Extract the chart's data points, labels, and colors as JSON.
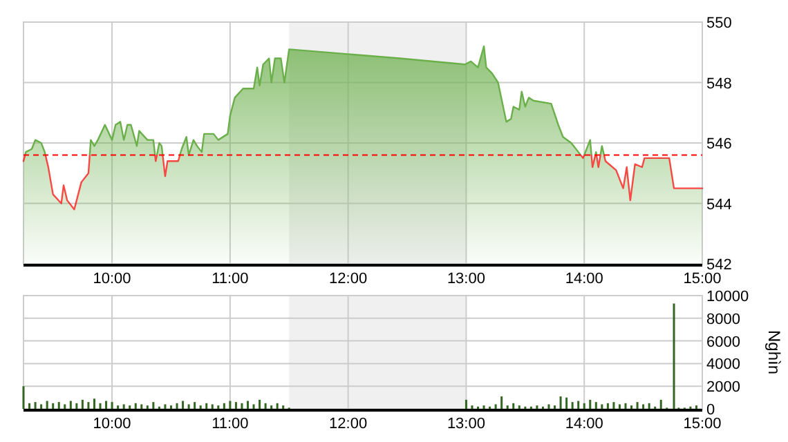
{
  "chart_data": [
    {
      "type": "area",
      "x": [
        9.25,
        9.27,
        9.32,
        9.35,
        9.4,
        9.43,
        9.46,
        9.5,
        9.57,
        9.59,
        9.62,
        9.68,
        9.7,
        9.74,
        9.8,
        9.82,
        9.85,
        9.88,
        9.94,
        10.0,
        10.03,
        10.07,
        10.1,
        10.13,
        10.16,
        10.21,
        10.23,
        10.3,
        10.35,
        10.37,
        10.4,
        10.42,
        10.45,
        10.47,
        10.56,
        10.59,
        10.63,
        10.65,
        10.69,
        10.72,
        10.76,
        10.78,
        10.86,
        10.9,
        10.98,
        11.0,
        11.04,
        11.11,
        11.2,
        11.23,
        11.25,
        11.28,
        11.33,
        11.35,
        11.38,
        11.43,
        11.46,
        11.5,
        12.44,
        12.99,
        13.04,
        13.1,
        13.15,
        13.17,
        13.22,
        13.27,
        13.34,
        13.38,
        13.4,
        13.45,
        13.47,
        13.5,
        13.53,
        13.57,
        13.72,
        13.78,
        13.82,
        13.89,
        13.95,
        13.99,
        14.05,
        14.07,
        14.1,
        14.12,
        14.15,
        14.18,
        14.27,
        14.33,
        14.36,
        14.39,
        14.43,
        14.49,
        14.51,
        14.72,
        14.76,
        15.0
      ],
      "series": [
        {
          "color": "#6aaf4a",
          "values": [
            545.4,
            545.7,
            545.8,
            546.1,
            546.0,
            545.7,
            545.2,
            544.3,
            544.0,
            544.6,
            544.1,
            543.8,
            544.1,
            544.7,
            545.0,
            546.1,
            545.9,
            546.1,
            546.6,
            546.1,
            546.6,
            546.7,
            546.1,
            546.6,
            546.6,
            545.9,
            546.4,
            546.1,
            546.1,
            545.4,
            546.0,
            545.9,
            544.9,
            545.4,
            545.4,
            545.8,
            546.2,
            545.6,
            546.1,
            545.9,
            545.7,
            546.3,
            546.3,
            546.1,
            546.3,
            546.9,
            547.5,
            547.8,
            547.8,
            548.5,
            547.9,
            548.6,
            548.8,
            548.0,
            548.8,
            548.8,
            548.0,
            549.1,
            548.8,
            548.6,
            548.7,
            548.5,
            549.2,
            548.5,
            548.3,
            548.0,
            546.7,
            546.8,
            547.2,
            547.1,
            547.7,
            547.2,
            547.5,
            547.4,
            547.3,
            546.6,
            546.2,
            546.0,
            545.7,
            545.5,
            546.1,
            545.2,
            545.7,
            545.2,
            545.9,
            545.4,
            545.1,
            544.5,
            545.2,
            544.1,
            545.3,
            545.2,
            545.5,
            545.5,
            544.5,
            544.5
          ]
        }
      ],
      "xlim": [
        9.25,
        15
      ],
      "xticks": [
        {
          "value": 10,
          "label": "10:00"
        },
        {
          "value": 11,
          "label": "11:00"
        },
        {
          "value": 12,
          "label": "12:00"
        },
        {
          "value": 13,
          "label": "13:00"
        },
        {
          "value": 14,
          "label": "14:00"
        },
        {
          "value": 15,
          "label": "15:00"
        }
      ],
      "ylim": [
        542,
        550
      ],
      "yticks": [
        542,
        544,
        546,
        548,
        550
      ],
      "grid": true,
      "ref_lines": [
        {
          "axis": "y",
          "value": 545.6,
          "color": "#ff0000",
          "line_style": "dashed"
        }
      ],
      "bands": [
        {
          "axis": "x",
          "from": 11.5,
          "to": 13,
          "color": "#f0f0f0"
        }
      ]
    },
    {
      "type": "bar",
      "ylabel": "Nghìn",
      "x": [
        9.25,
        9.3,
        9.35,
        9.4,
        9.45,
        9.5,
        9.55,
        9.6,
        9.65,
        9.7,
        9.75,
        9.8,
        9.85,
        9.9,
        9.95,
        10.0,
        10.05,
        10.1,
        10.15,
        10.2,
        10.25,
        10.3,
        10.35,
        10.4,
        10.45,
        10.5,
        10.55,
        10.6,
        10.65,
        10.7,
        10.75,
        10.8,
        10.85,
        10.9,
        10.95,
        11.0,
        11.05,
        11.1,
        11.15,
        11.2,
        11.25,
        11.3,
        11.35,
        11.4,
        11.45,
        11.5,
        13.0,
        13.05,
        13.1,
        13.15,
        13.2,
        13.25,
        13.3,
        13.35,
        13.4,
        13.45,
        13.5,
        13.55,
        13.6,
        13.65,
        13.7,
        13.75,
        13.8,
        13.85,
        13.9,
        13.95,
        14.0,
        14.05,
        14.1,
        14.15,
        14.2,
        14.25,
        14.3,
        14.35,
        14.4,
        14.45,
        14.5,
        14.55,
        14.6,
        14.65,
        14.7,
        14.76,
        14.8,
        14.85,
        14.9,
        14.95
      ],
      "series": [
        {
          "color": "#336622",
          "values": [
            2000,
            500,
            600,
            400,
            700,
            500,
            600,
            400,
            700,
            500,
            800,
            600,
            900,
            500,
            700,
            600,
            300,
            400,
            300,
            500,
            400,
            300,
            600,
            200,
            400,
            300,
            500,
            700,
            400,
            600,
            300,
            500,
            400,
            300,
            500,
            700,
            600,
            500,
            700,
            400,
            800,
            500,
            300,
            500,
            300,
            100,
            800,
            300,
            200,
            300,
            200,
            400,
            1100,
            300,
            500,
            300,
            200,
            200,
            300,
            200,
            400,
            300,
            1100,
            1000,
            600,
            700,
            500,
            800,
            600,
            400,
            500,
            600,
            400,
            500,
            300,
            600,
            400,
            500,
            200,
            800,
            100,
            9300,
            100,
            100,
            200,
            300
          ]
        }
      ],
      "xlim": [
        9.25,
        15
      ],
      "xticks": [
        {
          "value": 10,
          "label": "10:00"
        },
        {
          "value": 11,
          "label": "11:00"
        },
        {
          "value": 12,
          "label": "12:00"
        },
        {
          "value": 13,
          "label": "13:00"
        },
        {
          "value": 14,
          "label": "14:00"
        },
        {
          "value": 15,
          "label": "15:00"
        }
      ],
      "ylim": [
        0,
        10000
      ],
      "yticks": [
        0,
        2000,
        4000,
        6000,
        8000,
        10000
      ],
      "grid": true,
      "bands": [
        {
          "axis": "x",
          "from": 11.5,
          "to": 13,
          "color": "#f0f0f0"
        }
      ]
    }
  ]
}
